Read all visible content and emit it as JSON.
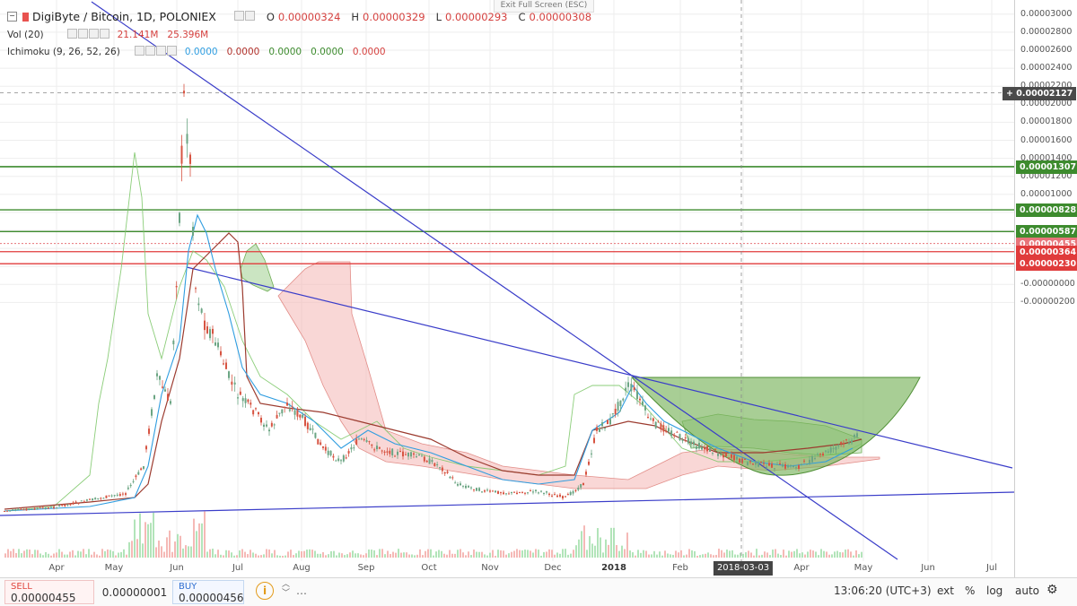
{
  "header": {
    "symbol": "DigiByte / Bitcoin, 1D, POLONIEX",
    "ohlc": [
      {
        "k": "O",
        "v": "0.00000324"
      },
      {
        "k": "H",
        "v": "0.00000329"
      },
      {
        "k": "L",
        "v": "0.00000293"
      },
      {
        "k": "C",
        "v": "0.00000308"
      }
    ],
    "vol_label": "Vol (20)",
    "vol_values": [
      "21.141M",
      "25.396M"
    ],
    "ichimoku_label": "Ichimoku (9, 26, 52, 26)",
    "ichimoku_values": [
      "0.0000",
      "0.0000",
      "0.0000",
      "0.0000",
      "0.0000"
    ],
    "exit_fullscreen": "Exit Full Screen (ESC)"
  },
  "colors": {
    "up": "#6ba583",
    "down": "#d75442",
    "trendline": "#3a3dc9",
    "resistance": "#3d8b2e",
    "support": "#e03b3b",
    "cloud_red": "#f4b6b4",
    "cloud_green": "#a9d49a",
    "cup_fill": "#79b35c",
    "lagging": "#7ec86a",
    "tenkan": "#2f9de0",
    "kijun": "#9c3b2f"
  },
  "price_axis": {
    "ticks": [
      "0.00003000",
      "0.00002800",
      "0.00002600",
      "0.00002400",
      "0.00002200",
      "0.00002000",
      "0.00001800",
      "0.00001600",
      "0.00001400",
      "0.00001200",
      "0.00001000",
      "0.00000800",
      "0.00000600",
      "0.00000400",
      "0.00000200",
      "-0.00000000",
      "-0.00000200"
    ],
    "tags": [
      {
        "label": "0.00002127",
        "value": 2127,
        "color": "#4a4a4a",
        "prefix": "+"
      },
      {
        "label": "0.00001307",
        "value": 1307,
        "color": "#3d8b2e"
      },
      {
        "label": "0.00000828",
        "value": 828,
        "color": "#3d8b2e"
      },
      {
        "label": "0.00000587",
        "value": 587,
        "color": "#3d8b2e"
      },
      {
        "label": "0.00000455",
        "value": 455,
        "color": "#e8747a"
      },
      {
        "label": "0.00000364",
        "value": 364,
        "color": "#e03b3b"
      },
      {
        "label": "0.00000230",
        "value": 230,
        "color": "#e03b3b"
      }
    ]
  },
  "time_axis": [
    {
      "label": "Apr"
    },
    {
      "label": "May"
    },
    {
      "label": "Jun"
    },
    {
      "label": "Jul"
    },
    {
      "label": "Aug"
    },
    {
      "label": "Sep"
    },
    {
      "label": "Oct"
    },
    {
      "label": "Nov"
    },
    {
      "label": "Dec"
    },
    {
      "label": "2018",
      "bold": true
    },
    {
      "label": "Feb"
    },
    {
      "label": "2018-03-03",
      "crosshair": true
    },
    {
      "label": "Apr"
    },
    {
      "label": "May"
    },
    {
      "label": "Jun"
    },
    {
      "label": "Jul"
    }
  ],
  "chart_data": {
    "type": "line",
    "title": "DigiByte / Bitcoin, 1D, POLONIEX",
    "ylabel": "",
    "ylim": [
      -2e-06,
      3e-05
    ],
    "x_unit": "month",
    "series": [
      {
        "values_x": [
          "2017-04-01",
          "2017-05-01",
          "2017-05-15",
          "2017-06-01",
          "2017-06-05",
          "2017-06-15",
          "2017-07-01",
          "2017-07-20",
          "2017-08-01",
          "2017-08-20",
          "2017-09-01",
          "2017-09-15",
          "2017-10-01",
          "2017-10-20",
          "2017-11-01",
          "2017-11-20",
          "2017-12-01",
          "2017-12-20",
          "2018-01-06",
          "2018-01-20",
          "2018-02-01",
          "2018-02-20",
          "2018-03-10",
          "2018-04-01",
          "2018-04-20",
          "2018-04-28"
        ],
        "values": [
          3e-07,
          6e-07,
          2.3e-06,
          2e-05,
          2.4e-05,
          1.2e-05,
          7.5e-06,
          5.5e-06,
          6.2e-06,
          3.8e-06,
          4.5e-06,
          3.8e-06,
          4.2e-06,
          3.2e-06,
          2e-06,
          1.4e-06,
          1.2e-06,
          2.5e-06,
          8e-06,
          5.5e-06,
          4.2e-06,
          3.3e-06,
          2.5e-06,
          2.3e-06,
          2.9e-06,
          4.55e-06
        ]
      }
    ],
    "horizontal_levels": [
      1.307e-05,
      8.28e-06,
      5.87e-06,
      4.55e-06,
      3.64e-06,
      2.3e-06
    ],
    "crosshair": {
      "date": "2018-03-03",
      "price": 2.127e-05
    },
    "grid": true
  },
  "bottom_bar": {
    "sell_label": "SELL",
    "sell_price": "0.00000455",
    "spread": "0.00000001",
    "buy_label": "BUY",
    "buy_price": "0.00000456",
    "time": "13:06:20 (UTC+3)",
    "ext": "ext",
    "percent": "%",
    "log": "log",
    "auto": "auto"
  }
}
